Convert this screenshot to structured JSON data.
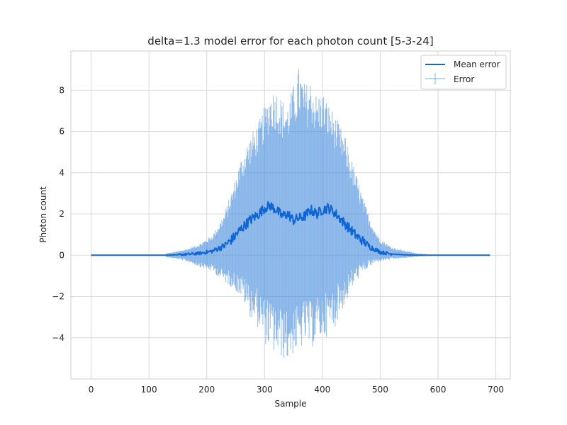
{
  "chart_data": {
    "type": "line",
    "title": "delta=1.3 model error for each photon count [5-3-24]",
    "xlabel": "Sample",
    "ylabel": "Photon count",
    "xlim": [
      -35,
      725
    ],
    "ylim": [
      -6.0,
      9.9
    ],
    "xticks": [
      0,
      100,
      200,
      300,
      400,
      500,
      600,
      700
    ],
    "xtick_labels": [
      "0",
      "100",
      "200",
      "300",
      "400",
      "500",
      "600",
      "700"
    ],
    "yticks": [
      -4,
      -2,
      0,
      2,
      4,
      6,
      8
    ],
    "ytick_labels": [
      "−4",
      "−2",
      "0",
      "2",
      "4",
      "6",
      "8"
    ],
    "grid": true,
    "legend_position": "top-right",
    "legend": [
      "Mean error",
      "Error"
    ],
    "colors": {
      "mean": "#1166d6",
      "error": "#4a8fdf"
    },
    "series": [
      {
        "name": "Mean error",
        "x": [
          0,
          130,
          150,
          170,
          190,
          210,
          230,
          245,
          260,
          275,
          290,
          300,
          310,
          320,
          330,
          340,
          350,
          360,
          370,
          380,
          390,
          400,
          410,
          420,
          430,
          440,
          450,
          460,
          470,
          480,
          490,
          500,
          520,
          540,
          560,
          600,
          690
        ],
        "y": [
          0,
          0,
          0.02,
          0.05,
          0.1,
          0.2,
          0.45,
          0.8,
          1.3,
          1.7,
          2.0,
          2.3,
          2.4,
          2.2,
          1.9,
          2.0,
          1.7,
          1.8,
          1.9,
          2.2,
          2.0,
          2.2,
          2.3,
          2.1,
          1.8,
          1.5,
          1.2,
          0.9,
          0.7,
          0.45,
          0.3,
          0.15,
          0.06,
          0.02,
          0.0,
          0.0,
          0.0
        ]
      },
      {
        "name": "Error",
        "x": [
          130,
          150,
          170,
          190,
          210,
          230,
          245,
          260,
          275,
          290,
          300,
          310,
          320,
          330,
          340,
          350,
          360,
          370,
          380,
          390,
          400,
          410,
          420,
          430,
          440,
          450,
          460,
          470,
          480,
          490,
          500,
          520,
          540,
          560,
          580
        ],
        "upper": [
          0.1,
          0.2,
          0.35,
          0.6,
          1.0,
          2.0,
          3.3,
          4.8,
          5.8,
          6.5,
          7.2,
          8.0,
          8.1,
          7.6,
          7.4,
          8.3,
          9.2,
          8.3,
          8.6,
          7.8,
          8.0,
          7.4,
          6.9,
          6.3,
          5.7,
          4.7,
          3.8,
          2.8,
          2.0,
          1.3,
          0.8,
          0.4,
          0.25,
          0.12,
          0.05
        ],
        "lower": [
          -0.1,
          -0.2,
          -0.35,
          -0.6,
          -0.8,
          -1.3,
          -1.6,
          -2.1,
          -3.0,
          -3.6,
          -4.3,
          -4.6,
          -4.9,
          -5.0,
          -5.2,
          -4.8,
          -4.7,
          -4.3,
          -4.6,
          -4.2,
          -4.1,
          -3.9,
          -3.6,
          -2.9,
          -2.4,
          -1.7,
          -1.2,
          -0.9,
          -0.6,
          -0.4,
          -0.3,
          -0.2,
          -0.15,
          -0.08,
          -0.04
        ]
      }
    ]
  }
}
